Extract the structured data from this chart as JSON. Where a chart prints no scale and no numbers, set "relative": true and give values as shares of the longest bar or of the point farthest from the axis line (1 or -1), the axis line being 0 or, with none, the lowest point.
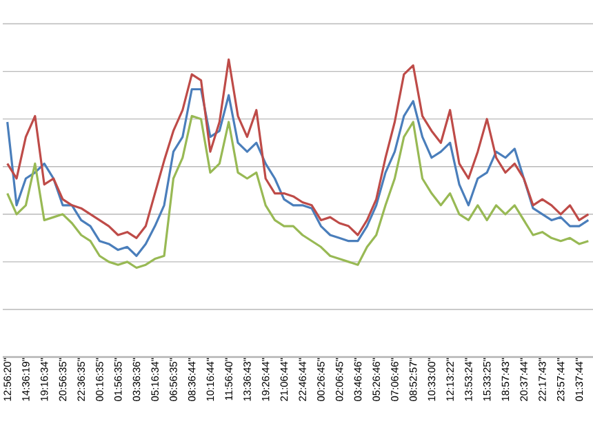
{
  "chart_data": {
    "type": "line",
    "relative": true,
    "grid": "y",
    "marker": "none",
    "line_style": "solid",
    "categories": [
      "12:56:20\"",
      null,
      "14:36:19\"",
      null,
      "19:16:34\"",
      null,
      "20:56:35\"",
      null,
      "22:36:35\"",
      null,
      "00:16:35\"",
      null,
      "01:56:35\"",
      null,
      "03:36:36\"",
      null,
      "05:16:34\"",
      null,
      "06:56:35\"",
      null,
      "08:36:44\"",
      null,
      "10:16:44\"",
      null,
      "11:56:40\"",
      null,
      "13:36:43\"",
      null,
      "19:26:44\"",
      null,
      "21:06:44\"",
      null,
      "22:46:44\"",
      null,
      "00:26:45\"",
      null,
      "02:06:45\"",
      null,
      "03:46:46\"",
      null,
      "05:26:46\"",
      null,
      "07:06:46\"",
      null,
      "08:52:57\"",
      null,
      "10:33:00\"",
      null,
      "12:13:22\"",
      null,
      "13:53:24\"",
      null,
      "15:33:25\"",
      null,
      "18:57:43\"",
      null,
      "20:37:44\"",
      null,
      "22:17:43\"",
      null,
      "23:57:44\"",
      null,
      "01:37:44\"",
      null
    ],
    "series": [
      {
        "color": "#4a7ebb",
        "values": [
          0.79,
          0.51,
          0.6,
          0.62,
          0.65,
          0.6,
          0.51,
          0.51,
          0.46,
          0.44,
          0.39,
          0.38,
          0.36,
          0.37,
          0.34,
          0.38,
          0.44,
          0.51,
          0.69,
          0.74,
          0.9,
          0.9,
          0.74,
          0.76,
          0.88,
          0.72,
          0.69,
          0.72,
          0.65,
          0.6,
          0.53,
          0.51,
          0.51,
          0.5,
          0.44,
          0.41,
          0.4,
          0.39,
          0.39,
          0.44,
          0.51,
          0.62,
          0.69,
          0.81,
          0.86,
          0.74,
          0.67,
          0.69,
          0.72,
          0.58,
          0.51,
          0.6,
          0.62,
          0.69,
          0.67,
          0.7,
          0.6,
          0.5,
          0.48,
          0.46,
          0.47,
          0.44,
          0.44,
          0.46
        ]
      },
      {
        "color": "#be4b48",
        "values": [
          0.65,
          0.6,
          0.74,
          0.81,
          0.58,
          0.6,
          0.53,
          0.51,
          0.5,
          0.48,
          0.46,
          0.44,
          0.41,
          0.42,
          0.4,
          0.44,
          0.55,
          0.66,
          0.76,
          0.83,
          0.95,
          0.93,
          0.69,
          0.79,
          1.0,
          0.81,
          0.74,
          0.83,
          0.6,
          0.55,
          0.55,
          0.54,
          0.52,
          0.51,
          0.46,
          0.47,
          0.45,
          0.44,
          0.41,
          0.46,
          0.53,
          0.67,
          0.79,
          0.95,
          0.98,
          0.81,
          0.76,
          0.72,
          0.83,
          0.65,
          0.6,
          0.69,
          0.8,
          0.67,
          0.62,
          0.65,
          0.6,
          0.51,
          0.53,
          0.51,
          0.48,
          0.51,
          0.46,
          0.48
        ]
      },
      {
        "color": "#98b954",
        "values": [
          0.55,
          0.48,
          0.51,
          0.65,
          0.46,
          0.47,
          0.48,
          0.45,
          0.41,
          0.39,
          0.34,
          0.32,
          0.31,
          0.32,
          0.3,
          0.31,
          0.33,
          0.34,
          0.6,
          0.67,
          0.81,
          0.8,
          0.62,
          0.65,
          0.79,
          0.62,
          0.6,
          0.62,
          0.51,
          0.46,
          0.44,
          0.44,
          0.41,
          0.39,
          0.37,
          0.34,
          0.33,
          0.32,
          0.31,
          0.37,
          0.41,
          0.51,
          0.6,
          0.74,
          0.79,
          0.6,
          0.55,
          0.51,
          0.55,
          0.48,
          0.46,
          0.51,
          0.46,
          0.51,
          0.48,
          0.51,
          0.46,
          0.41,
          0.42,
          0.4,
          0.39,
          0.4,
          0.38,
          0.39
        ]
      }
    ]
  }
}
